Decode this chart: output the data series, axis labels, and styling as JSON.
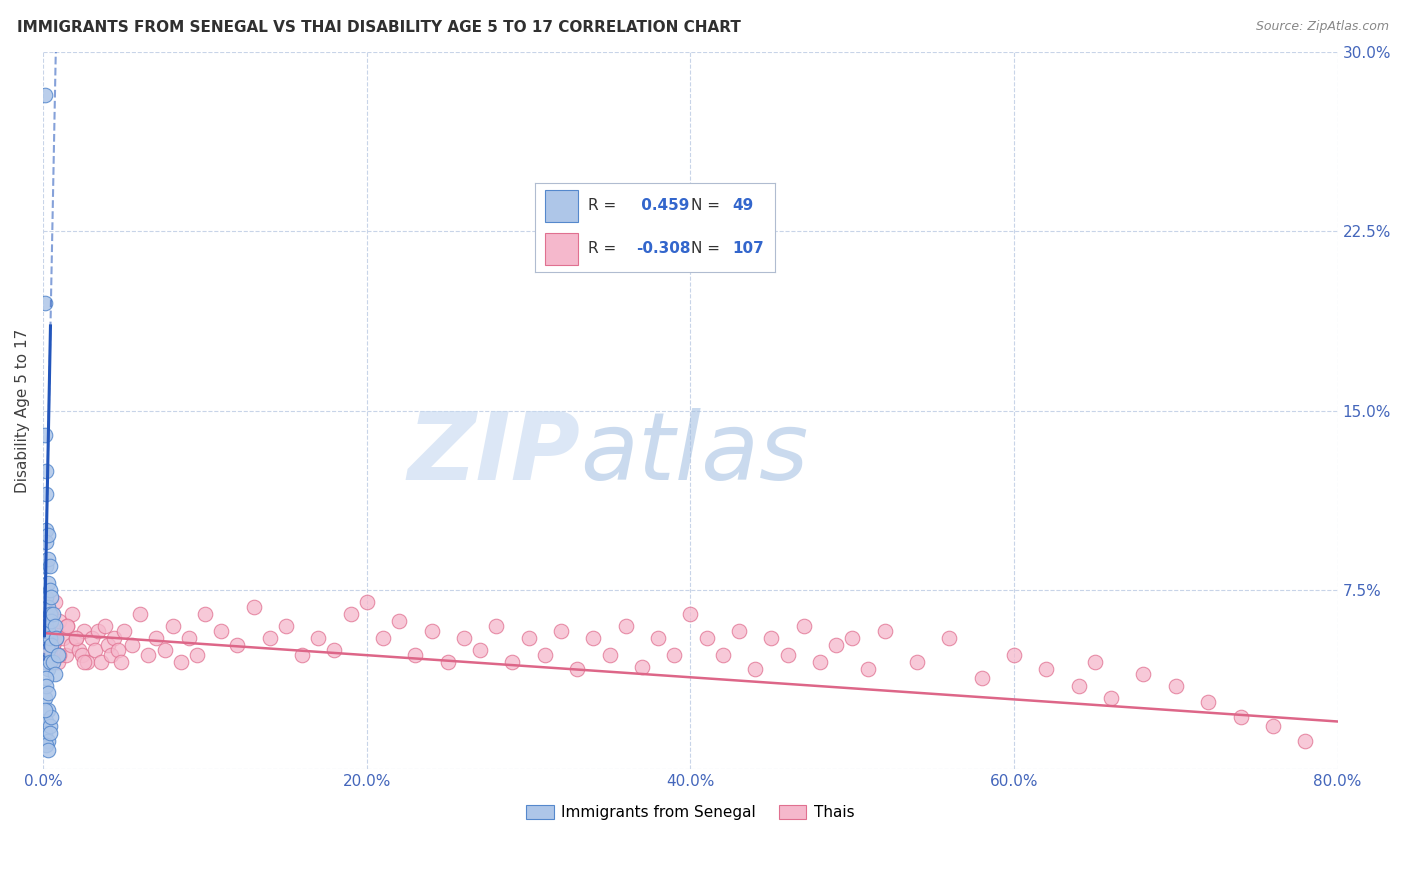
{
  "title": "IMMIGRANTS FROM SENEGAL VS THAI DISABILITY AGE 5 TO 17 CORRELATION CHART",
  "source": "Source: ZipAtlas.com",
  "xlabel_ticks": [
    "0.0%",
    "20.0%",
    "40.0%",
    "60.0%",
    "80.0%"
  ],
  "xlabel_vals": [
    0.0,
    0.2,
    0.4,
    0.6,
    0.8
  ],
  "ylabel": "Disability Age 5 to 17",
  "right_yticks": [
    0.0,
    0.075,
    0.15,
    0.225,
    0.3
  ],
  "right_ytick_labels": [
    "",
    "7.5%",
    "15.0%",
    "22.5%",
    "30.0%"
  ],
  "ylim": [
    0.0,
    0.3
  ],
  "xlim": [
    0.0,
    0.8
  ],
  "blue_R": 0.459,
  "blue_N": 49,
  "pink_R": -0.308,
  "pink_N": 107,
  "blue_color": "#aec6e8",
  "blue_edge_color": "#5588cc",
  "blue_line_color": "#2255bb",
  "pink_color": "#f5b8cc",
  "pink_edge_color": "#e07090",
  "pink_line_color": "#dd6688",
  "background_color": "#ffffff",
  "grid_color": "#c8d4e8",
  "title_color": "#303030",
  "source_color": "#888888",
  "legend_text_color": "#3366cc",
  "watermark_zip_color": "#b8cce8",
  "watermark_atlas_color": "#88aacc",
  "blue_scatter_x": [
    0.001,
    0.001,
    0.001,
    0.001,
    0.001,
    0.002,
    0.002,
    0.002,
    0.002,
    0.002,
    0.002,
    0.002,
    0.002,
    0.002,
    0.003,
    0.003,
    0.003,
    0.003,
    0.003,
    0.003,
    0.003,
    0.004,
    0.004,
    0.004,
    0.004,
    0.004,
    0.005,
    0.005,
    0.005,
    0.006,
    0.006,
    0.007,
    0.007,
    0.008,
    0.009,
    0.001,
    0.002,
    0.003,
    0.002,
    0.001,
    0.004,
    0.003,
    0.002,
    0.005,
    0.003,
    0.002,
    0.001,
    0.004,
    0.003
  ],
  "blue_scatter_y": [
    0.282,
    0.195,
    0.14,
    0.055,
    0.045,
    0.125,
    0.115,
    0.1,
    0.095,
    0.085,
    0.072,
    0.065,
    0.06,
    0.055,
    0.098,
    0.088,
    0.078,
    0.068,
    0.058,
    0.05,
    0.042,
    0.085,
    0.075,
    0.065,
    0.055,
    0.045,
    0.072,
    0.062,
    0.052,
    0.065,
    0.045,
    0.06,
    0.04,
    0.055,
    0.048,
    0.03,
    0.038,
    0.025,
    0.02,
    0.015,
    0.018,
    0.012,
    0.01,
    0.022,
    0.008,
    0.035,
    0.025,
    0.015,
    0.032
  ],
  "pink_scatter_x": [
    0.001,
    0.002,
    0.003,
    0.004,
    0.005,
    0.006,
    0.007,
    0.008,
    0.009,
    0.01,
    0.012,
    0.014,
    0.015,
    0.017,
    0.018,
    0.02,
    0.022,
    0.024,
    0.025,
    0.027,
    0.03,
    0.032,
    0.034,
    0.036,
    0.038,
    0.04,
    0.042,
    0.044,
    0.046,
    0.048,
    0.05,
    0.055,
    0.06,
    0.065,
    0.07,
    0.075,
    0.08,
    0.085,
    0.09,
    0.095,
    0.1,
    0.11,
    0.12,
    0.13,
    0.14,
    0.15,
    0.16,
    0.17,
    0.18,
    0.19,
    0.2,
    0.21,
    0.22,
    0.23,
    0.24,
    0.25,
    0.26,
    0.27,
    0.28,
    0.29,
    0.3,
    0.31,
    0.32,
    0.33,
    0.34,
    0.35,
    0.36,
    0.37,
    0.38,
    0.39,
    0.4,
    0.41,
    0.42,
    0.43,
    0.44,
    0.45,
    0.46,
    0.47,
    0.48,
    0.49,
    0.5,
    0.51,
    0.52,
    0.54,
    0.56,
    0.58,
    0.6,
    0.62,
    0.64,
    0.65,
    0.66,
    0.68,
    0.7,
    0.72,
    0.74,
    0.76,
    0.78,
    0.001,
    0.002,
    0.003,
    0.004,
    0.006,
    0.008,
    0.01,
    0.015,
    0.02,
    0.025
  ],
  "pink_scatter_y": [
    0.055,
    0.06,
    0.055,
    0.048,
    0.065,
    0.052,
    0.07,
    0.058,
    0.045,
    0.062,
    0.055,
    0.048,
    0.06,
    0.052,
    0.065,
    0.055,
    0.05,
    0.048,
    0.058,
    0.045,
    0.055,
    0.05,
    0.058,
    0.045,
    0.06,
    0.052,
    0.048,
    0.055,
    0.05,
    0.045,
    0.058,
    0.052,
    0.065,
    0.048,
    0.055,
    0.05,
    0.06,
    0.045,
    0.055,
    0.048,
    0.065,
    0.058,
    0.052,
    0.068,
    0.055,
    0.06,
    0.048,
    0.055,
    0.05,
    0.065,
    0.07,
    0.055,
    0.062,
    0.048,
    0.058,
    0.045,
    0.055,
    0.05,
    0.06,
    0.045,
    0.055,
    0.048,
    0.058,
    0.042,
    0.055,
    0.048,
    0.06,
    0.043,
    0.055,
    0.048,
    0.065,
    0.055,
    0.048,
    0.058,
    0.042,
    0.055,
    0.048,
    0.06,
    0.045,
    0.052,
    0.055,
    0.042,
    0.058,
    0.045,
    0.055,
    0.038,
    0.048,
    0.042,
    0.035,
    0.045,
    0.03,
    0.04,
    0.035,
    0.028,
    0.022,
    0.018,
    0.012,
    0.058,
    0.05,
    0.045,
    0.048,
    0.052,
    0.055,
    0.048,
    0.06,
    0.055,
    0.045
  ]
}
